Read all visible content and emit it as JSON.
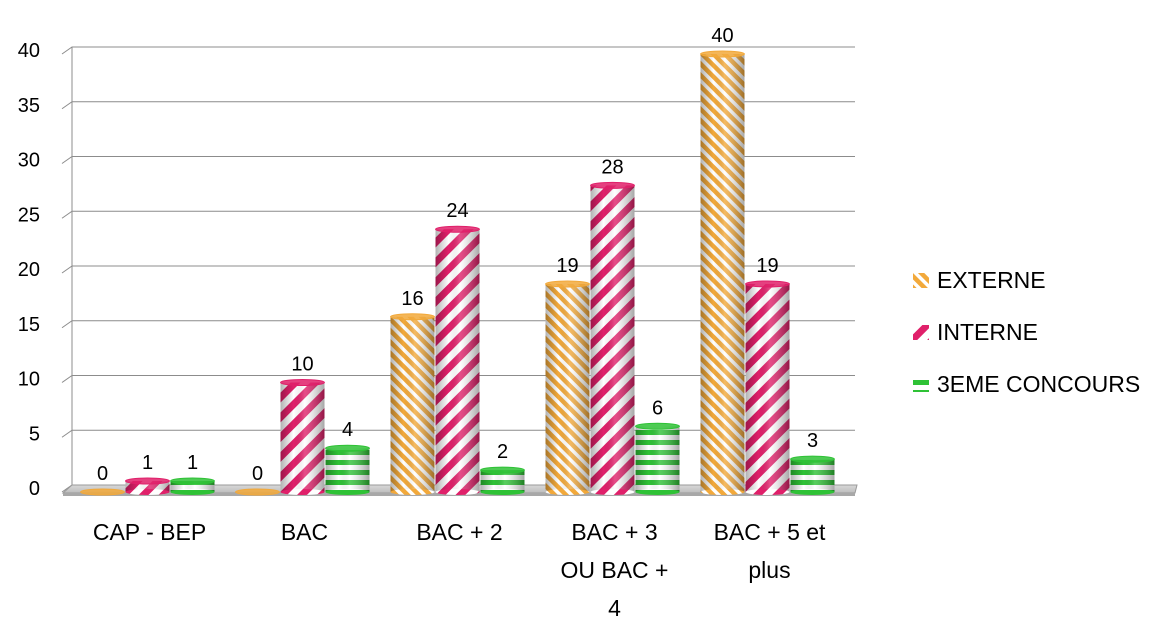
{
  "chart_data": {
    "type": "bar",
    "style": "3d-cylinder",
    "categories": [
      [
        "CAP - BEP"
      ],
      [
        "BAC"
      ],
      [
        "BAC + 2"
      ],
      [
        "BAC + 3",
        "OU BAC +",
        "4"
      ],
      [
        "BAC + 5 et",
        "plus"
      ]
    ],
    "series": [
      {
        "name": "EXTERNE",
        "values": [
          0,
          0,
          16,
          19,
          40
        ],
        "color": "#f2a93b",
        "pattern": "diagonal-up"
      },
      {
        "name": "INTERNE",
        "values": [
          1,
          10,
          24,
          28,
          19
        ],
        "color": "#e0206a",
        "pattern": "diagonal-down"
      },
      {
        "name": "3EME CONCOURS",
        "values": [
          1,
          4,
          2,
          6,
          3
        ],
        "color": "#2fc236",
        "pattern": "horizontal"
      }
    ],
    "ylim": [
      0,
      40
    ],
    "yticks": [
      0,
      5,
      10,
      15,
      20,
      25,
      30,
      35,
      40
    ],
    "grid": true,
    "legend": "right",
    "xlabel": "",
    "ylabel": "",
    "title": ""
  }
}
